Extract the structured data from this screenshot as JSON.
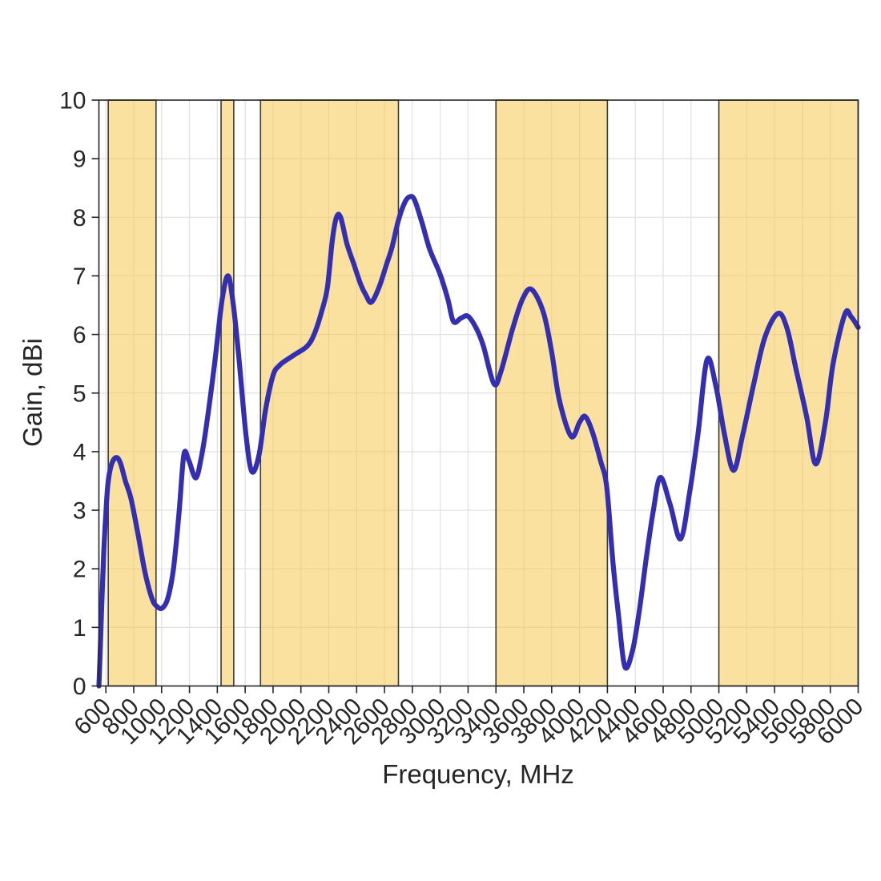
{
  "chart_data": {
    "type": "line",
    "title": "",
    "xlabel": "Frequency, MHz",
    "ylabel": "Gain, dBi",
    "xlim": [
      550,
      6000
    ],
    "ylim": [
      0,
      10
    ],
    "x_ticks": [
      600,
      800,
      1000,
      1200,
      1400,
      1600,
      1800,
      2000,
      2200,
      2400,
      2600,
      2800,
      3000,
      3200,
      3400,
      3600,
      3800,
      4000,
      4200,
      4400,
      4600,
      4800,
      5000,
      5200,
      5400,
      5600,
      5800,
      6000
    ],
    "y_ticks": [
      0,
      1,
      2,
      3,
      4,
      5,
      6,
      7,
      8,
      9,
      10
    ],
    "grid": true,
    "legend": "none",
    "x_tick_angle_deg": 45,
    "highlight_bands": [
      {
        "from": 617,
        "to": 960
      },
      {
        "from": 1427,
        "to": 1518
      },
      {
        "from": 1710,
        "to": 2700
      },
      {
        "from": 3400,
        "to": 4200
      },
      {
        "from": 5000,
        "to": 6000
      }
    ],
    "colors": {
      "line": "#332fb0",
      "band_fill": "#f7c852",
      "band_fill_alpha": 0.55,
      "band_border": "#3b3b33",
      "grid": "#e0e0e0",
      "axis": "#262626",
      "text": "#262626",
      "background": "#ffffff"
    },
    "series": [
      {
        "name": "gain_dBi",
        "points": [
          [
            550,
            0
          ],
          [
            558,
            0.5
          ],
          [
            570,
            1.35
          ],
          [
            585,
            2.3
          ],
          [
            600,
            2.95
          ],
          [
            615,
            3.45
          ],
          [
            640,
            3.78
          ],
          [
            675,
            3.9
          ],
          [
            705,
            3.8
          ],
          [
            740,
            3.5
          ],
          [
            780,
            3.2
          ],
          [
            830,
            2.6
          ],
          [
            880,
            1.95
          ],
          [
            930,
            1.5
          ],
          [
            965,
            1.36
          ],
          [
            1005,
            1.33
          ],
          [
            1045,
            1.5
          ],
          [
            1085,
            2.0
          ],
          [
            1125,
            2.95
          ],
          [
            1160,
            3.95
          ],
          [
            1195,
            3.85
          ],
          [
            1245,
            3.55
          ],
          [
            1285,
            3.9
          ],
          [
            1325,
            4.5
          ],
          [
            1380,
            5.5
          ],
          [
            1435,
            6.6
          ],
          [
            1478,
            7.0
          ],
          [
            1515,
            6.5
          ],
          [
            1555,
            5.6
          ],
          [
            1605,
            4.3
          ],
          [
            1648,
            3.66
          ],
          [
            1700,
            3.95
          ],
          [
            1745,
            4.7
          ],
          [
            1800,
            5.3
          ],
          [
            1845,
            5.47
          ],
          [
            1900,
            5.57
          ],
          [
            1965,
            5.67
          ],
          [
            2045,
            5.8
          ],
          [
            2095,
            6.0
          ],
          [
            2150,
            6.4
          ],
          [
            2190,
            6.8
          ],
          [
            2225,
            7.6
          ],
          [
            2255,
            8.0
          ],
          [
            2285,
            8.0
          ],
          [
            2330,
            7.55
          ],
          [
            2380,
            7.2
          ],
          [
            2430,
            6.85
          ],
          [
            2465,
            6.68
          ],
          [
            2505,
            6.55
          ],
          [
            2560,
            6.8
          ],
          [
            2615,
            7.2
          ],
          [
            2655,
            7.5
          ],
          [
            2700,
            7.95
          ],
          [
            2745,
            8.25
          ],
          [
            2780,
            8.35
          ],
          [
            2815,
            8.3
          ],
          [
            2870,
            7.9
          ],
          [
            2925,
            7.45
          ],
          [
            3000,
            7.02
          ],
          [
            3055,
            6.6
          ],
          [
            3095,
            6.22
          ],
          [
            3150,
            6.28
          ],
          [
            3200,
            6.31
          ],
          [
            3260,
            6.1
          ],
          [
            3310,
            5.8
          ],
          [
            3385,
            5.16
          ],
          [
            3435,
            5.36
          ],
          [
            3520,
            6.1
          ],
          [
            3590,
            6.6
          ],
          [
            3655,
            6.77
          ],
          [
            3740,
            6.38
          ],
          [
            3800,
            5.7
          ],
          [
            3855,
            4.88
          ],
          [
            3940,
            4.26
          ],
          [
            4000,
            4.5
          ],
          [
            4040,
            4.6
          ],
          [
            4090,
            4.35
          ],
          [
            4150,
            3.85
          ],
          [
            4195,
            3.4
          ],
          [
            4240,
            2.1
          ],
          [
            4280,
            1.2
          ],
          [
            4325,
            0.33
          ],
          [
            4380,
            0.6
          ],
          [
            4430,
            1.3
          ],
          [
            4480,
            2.2
          ],
          [
            4530,
            3.0
          ],
          [
            4580,
            3.56
          ],
          [
            4650,
            3.1
          ],
          [
            4725,
            2.51
          ],
          [
            4790,
            3.3
          ],
          [
            4850,
            4.3
          ],
          [
            4915,
            5.57
          ],
          [
            4980,
            5.1
          ],
          [
            5040,
            4.3
          ],
          [
            5105,
            3.68
          ],
          [
            5170,
            4.27
          ],
          [
            5250,
            5.15
          ],
          [
            5330,
            5.95
          ],
          [
            5425,
            6.36
          ],
          [
            5490,
            6.1
          ],
          [
            5550,
            5.45
          ],
          [
            5630,
            4.6
          ],
          [
            5695,
            3.79
          ],
          [
            5765,
            4.5
          ],
          [
            5820,
            5.5
          ],
          [
            5905,
            6.35
          ],
          [
            5950,
            6.3
          ],
          [
            6000,
            6.12
          ]
        ]
      }
    ]
  }
}
